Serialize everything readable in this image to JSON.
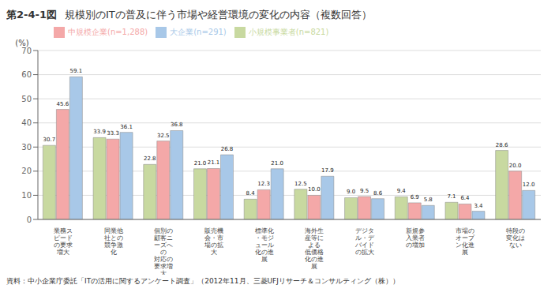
{
  "chart_data": {
    "type": "bar",
    "title": "第2-4-1図",
    "subtitle": "規模別のITの普及に伴う市場や経営環境の変化の内容（複数回答）",
    "y_label": "(%)",
    "categories": [
      "業務ス\nピード\nの要求\n増大",
      "同業他\n社との\n競争激\n化",
      "個別の\n顧客ニ\nーズへ\nの\n対応の\n要求増\n大",
      "販売機\n会・市\n場の拡\n大",
      "標準化\n・モジ\nュール\n化の進\n展",
      "海外生\n産等に\nよる\n低価格\n化の進\n展",
      "デジタ\nル・デ\nバイド\nの拡大",
      "新規参\n入業者\nの増加",
      "市場の\nオープ\nン化進\n展",
      "特段の\n変化は\nない"
    ],
    "series": [
      {
        "name": "小規模事業者(n=821)",
        "color": "#c8d9a0",
        "values": [
          30.7,
          33.9,
          22.8,
          21.0,
          8.4,
          12.5,
          9.0,
          9.4,
          7.1,
          28.6
        ],
        "value_labels": [
          "30.7",
          "33.9",
          "22.8",
          "21.0",
          "8.4",
          "12.5",
          "9.0",
          "9.4",
          "7.1",
          "28.6"
        ]
      },
      {
        "name": "中規模企業(n=1,288)",
        "color": "#f4a8a8",
        "values": [
          45.6,
          33.3,
          32.5,
          21.1,
          12.3,
          10.0,
          9.5,
          6.9,
          6.4,
          20.0
        ],
        "value_labels": [
          "45.6",
          "33.3",
          "32.5",
          "21.1",
          "12.3",
          "10.0",
          "9.5",
          "6.9",
          "6.4",
          "20.0"
        ]
      },
      {
        "name": "大企業(n=291)",
        "color": "#a8c8e8",
        "values": [
          59.1,
          36.1,
          36.8,
          26.8,
          21.0,
          17.9,
          8.6,
          5.8,
          3.4,
          12.0
        ],
        "value_labels": [
          "59.1",
          "36.1",
          "36.8",
          "26.8",
          "21.0",
          "17.9",
          "8.6",
          "5.8",
          "3.4",
          "12.0"
        ]
      }
    ],
    "ylim": [
      0,
      70
    ],
    "yticks": [
      0,
      10,
      20,
      30,
      40,
      50,
      60,
      70
    ],
    "grid": true,
    "legend": "upper left",
    "data_labels": true,
    "annotations": [
      "資料：中小企業庁委託「ITの活用に関するアンケート調査」（2012年11月、三菱UFJリサーチ＆コンサルティング（株））"
    ]
  }
}
